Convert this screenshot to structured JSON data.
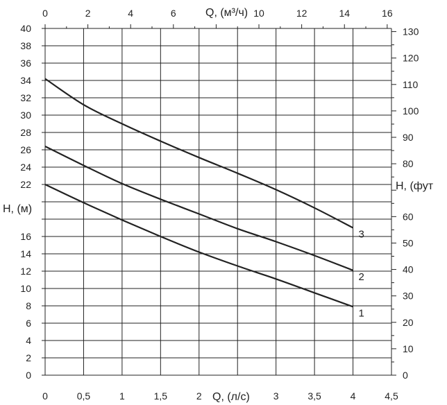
{
  "chart_data": {
    "type": "line",
    "top_axis": {
      "label": "Q, (м³/ч)",
      "ticks": [
        0,
        2,
        4,
        6,
        8,
        10,
        12,
        14,
        16
      ],
      "range": [
        0,
        16.2
      ]
    },
    "bottom_axis": {
      "label": "Q, (л/с)",
      "ticks": [
        "0",
        "0,5",
        "1",
        "1,5",
        "2",
        "3",
        "3,5",
        "4",
        "4,5"
      ],
      "tick_values": [
        0,
        0.5,
        1,
        1.5,
        2,
        3,
        3.5,
        4,
        4.5
      ],
      "range": [
        0,
        4.5
      ]
    },
    "left_axis": {
      "label": "H, (м)",
      "ticks": [
        "0",
        "2",
        "4",
        "6",
        "8",
        "10",
        "12",
        "14",
        "16",
        "22",
        "24",
        "26",
        "28",
        "30",
        "32",
        "34",
        "36",
        "38",
        "40"
      ],
      "tick_values": [
        0,
        2,
        4,
        6,
        8,
        10,
        12,
        14,
        16,
        22,
        24,
        26,
        28,
        30,
        32,
        34,
        36,
        38,
        40
      ],
      "range": [
        0,
        40
      ]
    },
    "right_axis": {
      "label": "H, (фут",
      "ticks": [
        0,
        10,
        20,
        30,
        40,
        50,
        60,
        70,
        80,
        90,
        100,
        110,
        120,
        130
      ],
      "range": [
        0,
        131.2
      ]
    },
    "grid": true,
    "series": [
      {
        "name": "1",
        "x": [
          0,
          0.5,
          1,
          1.5,
          2,
          2.5,
          3,
          3.5,
          4
        ],
        "y": [
          22,
          19.9,
          17.9,
          16,
          14.2,
          12.6,
          11.1,
          9.5,
          7.9
        ]
      },
      {
        "name": "2",
        "x": [
          0,
          0.5,
          1,
          1.5,
          2,
          2.5,
          3,
          3.5,
          4
        ],
        "y": [
          26.4,
          24.2,
          22.1,
          20.3,
          18.6,
          16.9,
          15.4,
          13.8,
          12.1
        ]
      },
      {
        "name": "3",
        "x": [
          0,
          0.5,
          1,
          1.5,
          2,
          2.5,
          3,
          3.5,
          4
        ],
        "y": [
          34.2,
          31.2,
          29.0,
          27.0,
          25.1,
          23.3,
          21.4,
          19.3,
          17.0
        ]
      }
    ]
  }
}
